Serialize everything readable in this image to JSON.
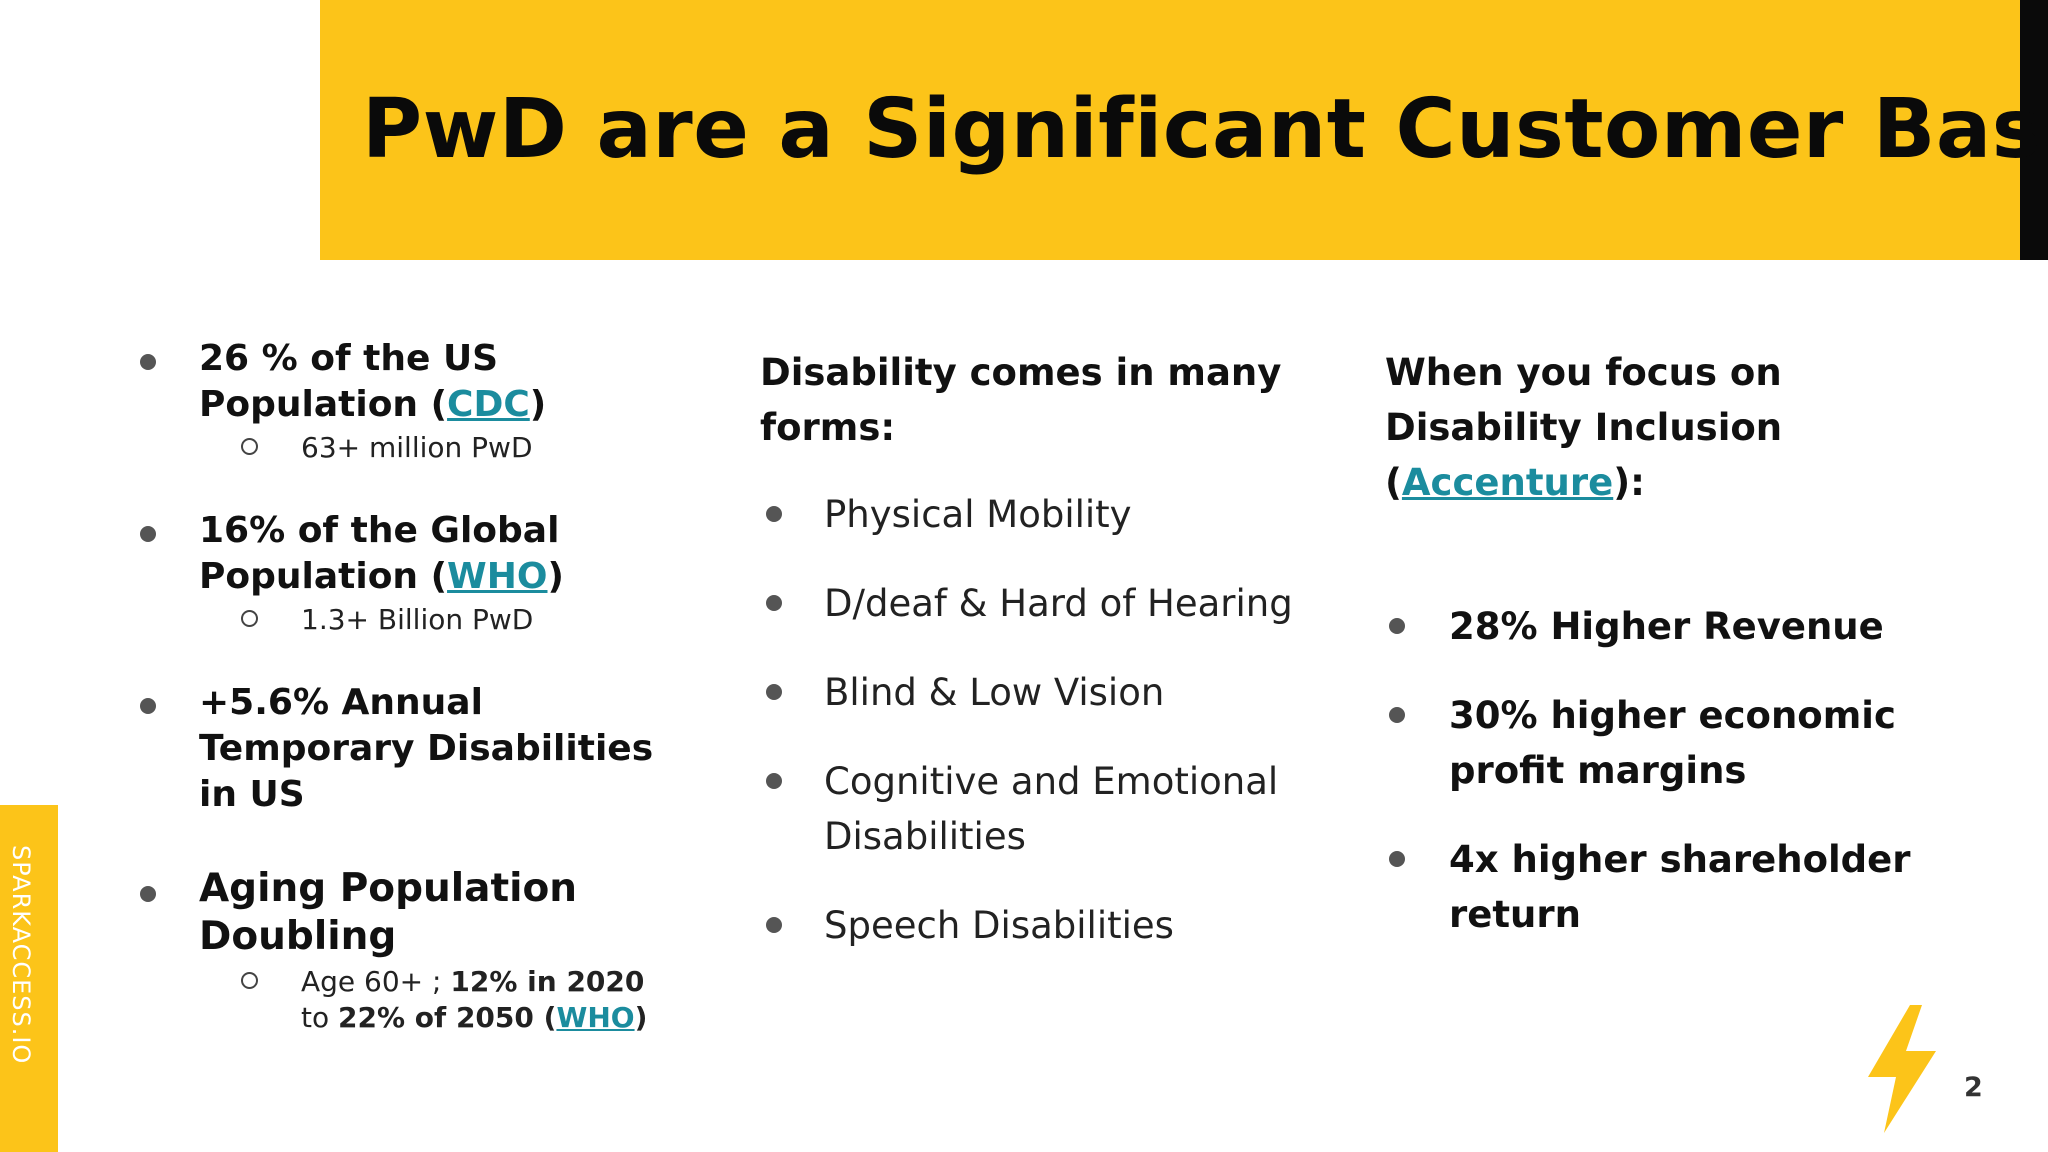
{
  "title": "PwD are a Significant Customer Base",
  "brand": {
    "side_label": "SPARKACCESS.IO",
    "accent_color": "#FCC419",
    "link_color": "#1B8C9E"
  },
  "left": {
    "items": [
      {
        "line1": "26 % of the US",
        "line2_pre": "Population (",
        "link": "CDC",
        "line2_post": ")",
        "sub": "63+ million PwD"
      },
      {
        "line1": "16% of the Global",
        "line2_pre": "Population (",
        "link": "WHO",
        "line2_post": ")",
        "sub": "1.3+ Billion PwD"
      },
      {
        "line1": "+5.6% Annual",
        "line2": "Temporary Disabilities",
        "line3": "in US"
      },
      {
        "line1": "Aging Population",
        "line2": "Doubling",
        "sub_a": "Age 60+ ; ",
        "sub_b": "12% in 2020",
        "sub_c": "to ",
        "sub_d": "22% of 2050 (",
        "sub_link": "WHO",
        "sub_e": ")"
      }
    ]
  },
  "middle": {
    "heading_line1": "Disability comes in many",
    "heading_line2": "forms:",
    "items": [
      "Physical Mobility",
      "D/deaf & Hard of Hearing",
      "Blind & Low Vision",
      "Cognitive and Emotional",
      "Disabilities",
      "Speech Disabilities"
    ]
  },
  "right": {
    "heading_line1": "When you focus on",
    "heading_line2": "Disability Inclusion",
    "heading_pre": "(",
    "heading_link": "Accenture",
    "heading_post": "):",
    "items": [
      {
        "line1": "28% Higher Revenue"
      },
      {
        "line1": "30% higher economic",
        "line2": "profit margins"
      },
      {
        "line1": "4x higher shareholder",
        "line2": "return"
      }
    ]
  },
  "footer": {
    "page_number": "2",
    "logo_icon": "lightning-bolt-icon"
  }
}
